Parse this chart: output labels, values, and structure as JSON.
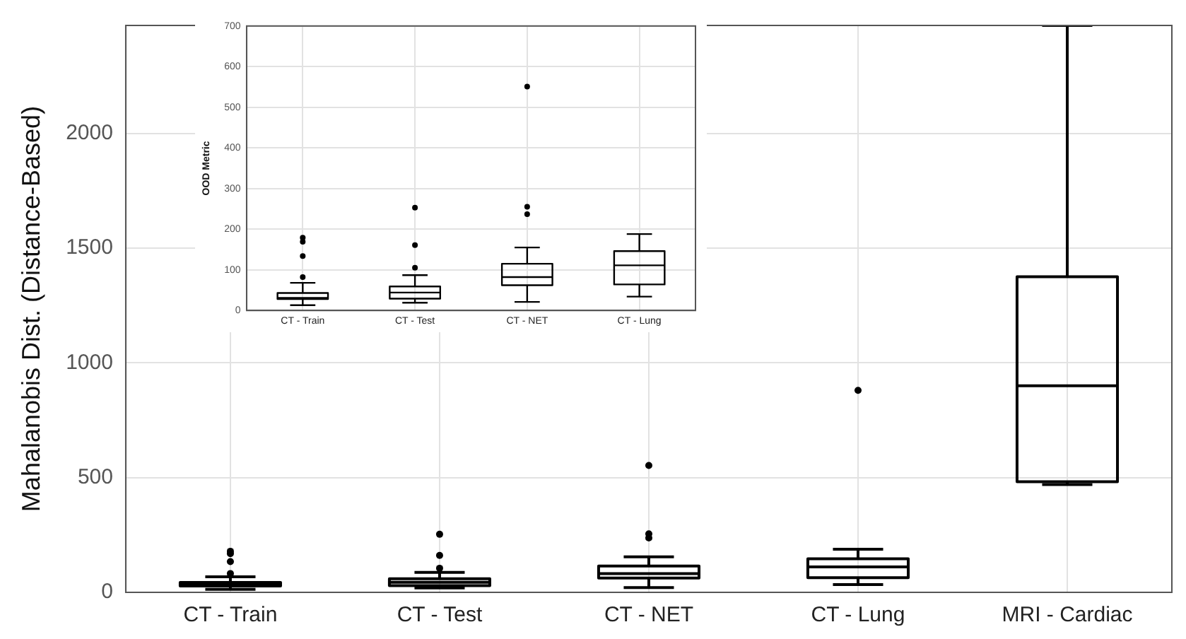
{
  "chart_data": [
    {
      "type": "box",
      "ylabel": "Mahalanobis Dist. (Distance-Based)",
      "categories": [
        "CT - Train",
        "CT - Test",
        "CT - NET",
        "CT - Lung",
        "MRI - Cardiac"
      ],
      "boxes": [
        {
          "low": 13,
          "q1": 28,
          "median": 31,
          "q3": 43,
          "high": 68,
          "outliers": [
            82,
            134,
            169,
            179
          ]
        },
        {
          "low": 19,
          "q1": 29,
          "median": 44,
          "q3": 59,
          "high": 87,
          "outliers": [
            105,
            161,
            253
          ]
        },
        {
          "low": 21,
          "q1": 62,
          "median": 82,
          "q3": 115,
          "high": 155,
          "outliers": [
            237,
            255,
            553
          ]
        },
        {
          "low": 34,
          "q1": 64,
          "median": 111,
          "q3": 146,
          "high": 188,
          "outliers": [
            880
          ]
        },
        {
          "low": 470,
          "q1": 482,
          "median": 900,
          "q3": 1375,
          "high": 2470
        }
      ],
      "ylim": [
        0,
        2470
      ],
      "yticks": [
        0,
        500,
        1000,
        1500,
        2000
      ],
      "grid": true
    },
    {
      "type": "box",
      "ylabel": "OOD Metric",
      "categories": [
        "CT - Train",
        "CT - Test",
        "CT - NET",
        "CT - Lung"
      ],
      "boxes": [
        {
          "low": 13,
          "q1": 28,
          "median": 31,
          "q3": 43,
          "high": 68,
          "outliers": [
            82,
            134,
            169,
            179
          ]
        },
        {
          "low": 19,
          "q1": 29,
          "median": 44,
          "q3": 59,
          "high": 87,
          "outliers": [
            105,
            161,
            253
          ]
        },
        {
          "low": 21,
          "q1": 62,
          "median": 82,
          "q3": 115,
          "high": 155,
          "outliers": [
            237,
            255,
            551
          ]
        },
        {
          "low": 34,
          "q1": 64,
          "median": 111,
          "q3": 146,
          "high": 188
        }
      ],
      "ylim": [
        0,
        700
      ],
      "yticks": [
        0,
        100,
        200,
        300,
        400,
        500,
        600,
        700
      ],
      "grid": true
    }
  ]
}
